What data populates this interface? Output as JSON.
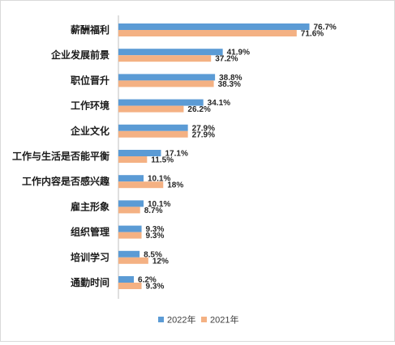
{
  "chart_data": {
    "type": "bar",
    "orientation": "horizontal",
    "categories": [
      "薪酬福利",
      "企业发展前景",
      "职位晋升",
      "工作环境",
      "企业文化",
      "工作与生活是否能平衡",
      "工作内容是否感兴趣",
      "雇主形象",
      "组织管理",
      "培训学习",
      "通勤时间"
    ],
    "series": [
      {
        "name": "2022年",
        "color": "#5B9BD5",
        "values": [
          76.7,
          41.9,
          38.8,
          34.1,
          27.9,
          17.1,
          10.1,
          10.1,
          9.3,
          8.5,
          6.2
        ],
        "labels": [
          "76.7%",
          "41.9%",
          "38.8%",
          "34.1%",
          "27.9%",
          "17.1%",
          "10.1%",
          "10.1%",
          "9.3%",
          "8.5%",
          "6.2%"
        ]
      },
      {
        "name": "2021年",
        "color": "#F4B183",
        "values": [
          71.6,
          37.2,
          38.3,
          26.2,
          27.9,
          11.5,
          18,
          8.7,
          9.3,
          12,
          9.3
        ],
        "labels": [
          "71.6%",
          "37.2%",
          "38.3%",
          "26.2%",
          "27.9%",
          "11.5%",
          "18%",
          "8.7%",
          "9.3%",
          "12%",
          "9.3%"
        ]
      }
    ],
    "xlim": [
      0,
      90
    ],
    "grid": false,
    "legend": "bottom"
  }
}
